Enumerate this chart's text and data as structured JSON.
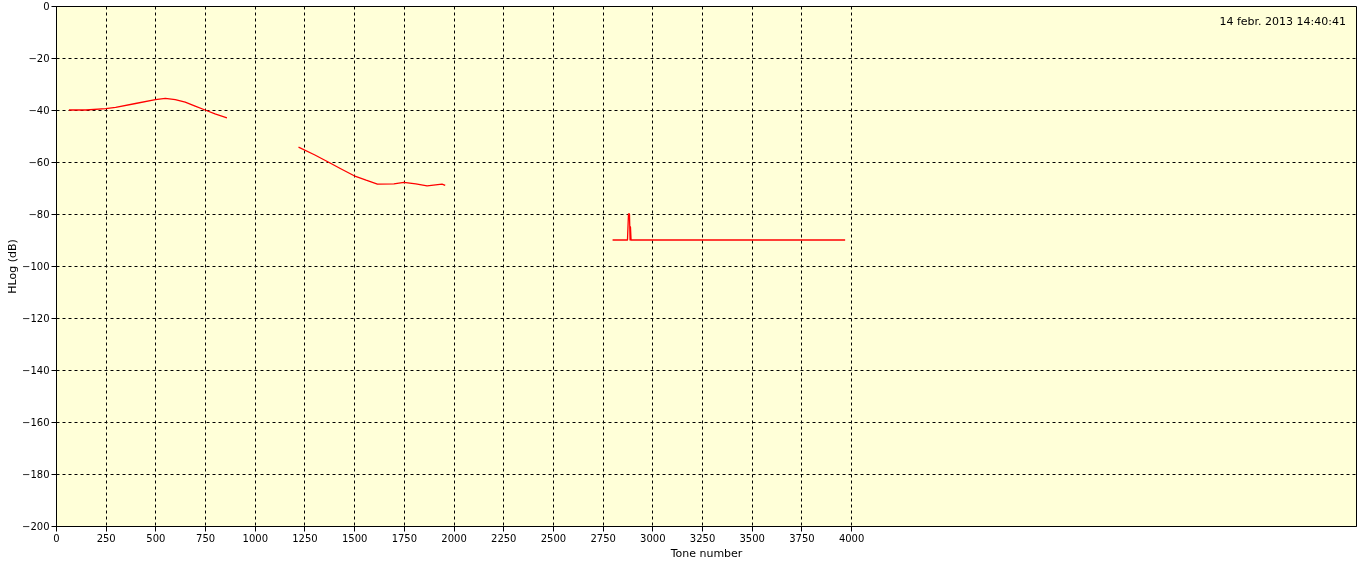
{
  "chart_data": {
    "type": "line",
    "xlabel": "Tone number",
    "ylabel": "HLog (dB)",
    "annotations": [
      "14 febr. 2013 14:40:41"
    ],
    "x": [
      65,
      150,
      250,
      300,
      400,
      500,
      550,
      600,
      650,
      700,
      750,
      800,
      860,
      1000,
      1220,
      1300,
      1367,
      1430,
      1500,
      1560,
      1617,
      1700,
      1750,
      1810,
      1867,
      1942,
      1958,
      2300,
      2800,
      2875,
      2880,
      2885,
      2888,
      2890,
      2893,
      3970
    ],
    "series": [
      {
        "color": "#ff0000",
        "values": [
          -40,
          -40,
          -39.5,
          -39,
          -37.5,
          -36,
          -35.5,
          -36,
          -37,
          -38.5,
          -40,
          -41.5,
          -43,
          null,
          -54.3,
          -57.2,
          -59.9,
          -62.5,
          -65.3,
          -67,
          -68.5,
          -68.4,
          -67.8,
          -68.4,
          -69.2,
          -68.5,
          -69,
          null,
          -90,
          -90,
          -80,
          -80,
          -90,
          -85,
          -90,
          -90
        ]
      }
    ],
    "xlim": [
      0,
      6540
    ],
    "ylim": [
      -200,
      0
    ],
    "xticks": [
      0,
      250,
      500,
      750,
      1000,
      1250,
      1500,
      1750,
      2000,
      2250,
      2500,
      2750,
      3000,
      3250,
      3500,
      3750,
      4000
    ],
    "yticks": [
      0,
      -20,
      -40,
      -60,
      -80,
      -100,
      -120,
      -140,
      -160,
      -180,
      -200
    ],
    "grid": true
  }
}
